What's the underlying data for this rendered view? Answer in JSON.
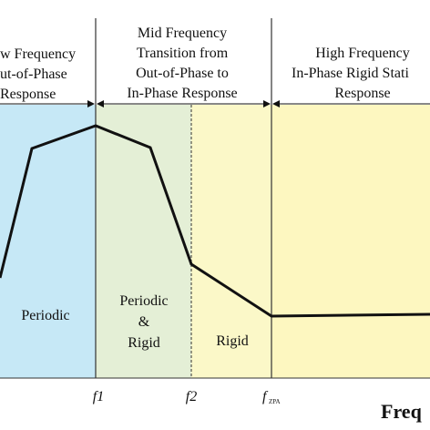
{
  "header": {
    "left": [
      "w Frequency",
      "ut-of-Phase",
      "Response"
    ],
    "middle": [
      "Mid Frequency",
      "Transition from",
      "Out-of-Phase to",
      "In-Phase Response"
    ],
    "right": [
      "High Frequency",
      "In-Phase Rigid Stati",
      "Response"
    ]
  },
  "regions": {
    "periodic": [
      "Periodic"
    ],
    "periodic_rigid": [
      "Periodic",
      "&",
      "Rigid"
    ],
    "rigid": [
      "Rigid"
    ]
  },
  "axis": {
    "f1": "f1",
    "f2": "f2",
    "f_zpa": "f",
    "f_zpa_sub": "ZPA",
    "label": "Freq"
  }
}
